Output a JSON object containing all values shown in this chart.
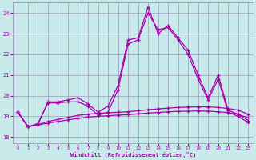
{
  "x": [
    0,
    1,
    2,
    3,
    4,
    5,
    6,
    7,
    8,
    9,
    10,
    11,
    12,
    13,
    14,
    15,
    16,
    17,
    18,
    19,
    20,
    21,
    22,
    23
  ],
  "line1": [
    19.2,
    18.5,
    18.6,
    19.7,
    19.7,
    19.8,
    19.9,
    19.6,
    19.2,
    19.5,
    20.5,
    22.7,
    22.8,
    24.3,
    23.0,
    23.4,
    22.8,
    22.2,
    21.0,
    19.9,
    21.0,
    19.3,
    19.1,
    18.8
  ],
  "line2": [
    19.2,
    18.5,
    18.65,
    19.65,
    19.65,
    19.7,
    19.7,
    19.5,
    19.05,
    19.2,
    20.3,
    22.5,
    22.7,
    24.0,
    23.2,
    23.3,
    22.7,
    22.0,
    20.8,
    19.8,
    20.8,
    19.2,
    19.0,
    18.7
  ],
  "line3": [
    19.2,
    18.5,
    18.6,
    18.75,
    18.85,
    18.95,
    19.05,
    19.1,
    19.15,
    19.17,
    19.2,
    19.22,
    19.27,
    19.32,
    19.36,
    19.4,
    19.43,
    19.45,
    19.46,
    19.46,
    19.43,
    19.38,
    19.3,
    19.1
  ],
  "line4": [
    19.2,
    18.5,
    18.58,
    18.67,
    18.75,
    18.83,
    18.9,
    18.96,
    19.0,
    19.03,
    19.06,
    19.08,
    19.12,
    19.16,
    19.19,
    19.22,
    19.24,
    19.25,
    19.26,
    19.25,
    19.22,
    19.18,
    19.1,
    18.92
  ],
  "line_color": "#aa00aa",
  "bg_color": "#c8eaea",
  "grid_color": "#9999bb",
  "xlabel": "Windchill (Refroidissement éolien,°C)",
  "ylim_min": 17.7,
  "ylim_max": 24.5,
  "yticks": [
    18,
    19,
    20,
    21,
    22,
    23,
    24
  ],
  "xticks": [
    0,
    1,
    2,
    3,
    4,
    5,
    6,
    7,
    8,
    9,
    10,
    11,
    12,
    13,
    14,
    15,
    16,
    17,
    18,
    19,
    20,
    21,
    22,
    23
  ]
}
